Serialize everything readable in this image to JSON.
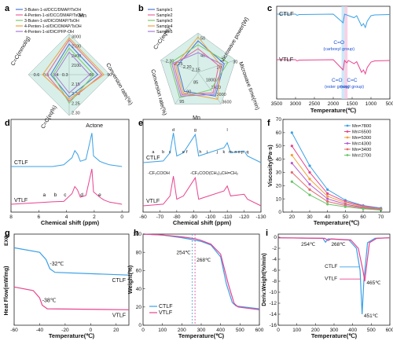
{
  "panel_letters": [
    "a",
    "b",
    "c",
    "d",
    "e",
    "f",
    "g",
    "h",
    "i"
  ],
  "colors": {
    "blue": "#3aa0e6",
    "pink": "#e8438f",
    "a_series": [
      "#4a74d8",
      "#e9639a",
      "#7bc96a",
      "#f0a13c",
      "#a67ad6"
    ],
    "b_series": [
      "#4a74d8",
      "#e9639a",
      "#7bc96a",
      "#f0a13c",
      "#a67ad6"
    ],
    "f_series": [
      "#3aa0e6",
      "#e8438f",
      "#f0a13c",
      "#b45fd0",
      "#e36b6b",
      "#6cc46a"
    ]
  },
  "chart_data": [
    {
      "id": "a",
      "type": "radar",
      "axes": [
        "Mn",
        "Conversion rate(%)",
        "C=C(eq%)",
        "C=C(mmol/g)"
      ],
      "axis_ticks": {
        "Mn": [
          "2100",
          "2400",
          "2700",
          "3000"
        ],
        "Conversion rate(%)": [
          "80",
          "90"
        ],
        "C=C(eq%)": [
          "2.15",
          "2.20",
          "2.25",
          "2.30"
        ],
        "C=C(mmol/g)": [
          "0.3",
          "0.4",
          "0.5",
          "0.6"
        ]
      },
      "series": [
        {
          "name": "3-Buten-1-ol/DCC/DMAP/TsOH",
          "values": [
            0.75,
            0.7,
            0.55,
            0.45
          ]
        },
        {
          "name": "4-Penten-1-ol/DCC/DMAP/TsOH",
          "values": [
            0.85,
            0.8,
            0.65,
            0.55
          ]
        },
        {
          "name": "3-Buten-1-ol/DIC/DMAP/TsOH",
          "values": [
            0.65,
            0.6,
            0.7,
            0.4
          ]
        },
        {
          "name": "4-Penten-1-ol/DIC/DMAP/TsOH",
          "values": [
            0.9,
            0.85,
            0.6,
            0.65
          ]
        },
        {
          "name": "4-Penten-1-ol/DIC/PFP-OH",
          "values": [
            0.55,
            0.5,
            0.45,
            0.35
          ]
        }
      ]
    },
    {
      "id": "b",
      "type": "radar",
      "axes": [
        "Microwave power(W)",
        "Microwave time(min)",
        "Mn",
        "Conversion rate(%)",
        "C=C(eq%)"
      ],
      "axis_ticks": {
        "Microwave power(W)": [
          "40",
          "50"
        ],
        "Microwave time(min)": [
          "20",
          "30"
        ],
        "Mn": [
          "1800",
          "2400",
          "3000",
          "3600"
        ],
        "Conversion rate(%)": [
          "85",
          "90",
          "95"
        ],
        "C=C(eq%)": [
          "2.15",
          "2.20",
          "2.25",
          "2.30"
        ]
      },
      "series": [
        {
          "name": "Sample1",
          "values": [
            0.8,
            0.7,
            0.75,
            0.6,
            0.55
          ]
        },
        {
          "name": "Sample2",
          "values": [
            0.6,
            0.55,
            0.65,
            0.7,
            0.65
          ]
        },
        {
          "name": "Sample3",
          "values": [
            0.7,
            0.8,
            0.55,
            0.8,
            0.75
          ]
        },
        {
          "name": "Sample4",
          "values": [
            0.9,
            0.6,
            0.85,
            0.65,
            0.6
          ]
        },
        {
          "name": "Sample5",
          "values": [
            0.5,
            0.65,
            0.7,
            0.75,
            0.7
          ]
        }
      ]
    },
    {
      "id": "c",
      "type": "line",
      "xlabel": "Temperature(℃)",
      "x_ticks": [
        "3500",
        "3000",
        "2500",
        "2000",
        "1500",
        "1000",
        "500"
      ],
      "xlim": [
        3500,
        500
      ],
      "series": [
        {
          "name": "CTLF",
          "points": [
            [
              3500,
              0.92
            ],
            [
              3000,
              0.92
            ],
            [
              2960,
              0.89
            ],
            [
              2900,
              0.91
            ],
            [
              2000,
              0.92
            ],
            [
              1740,
              0.7
            ],
            [
              1700,
              0.92
            ],
            [
              1450,
              0.83
            ],
            [
              1380,
              0.88
            ],
            [
              1250,
              0.62
            ],
            [
              1200,
              0.68
            ],
            [
              1150,
              0.58
            ],
            [
              1100,
              0.74
            ],
            [
              1000,
              0.88
            ],
            [
              900,
              0.9
            ],
            [
              500,
              0.91
            ]
          ]
        },
        {
          "name": "VTLF",
          "points": [
            [
              3500,
              0.92
            ],
            [
              3000,
              0.92
            ],
            [
              2960,
              0.89
            ],
            [
              2900,
              0.91
            ],
            [
              2000,
              0.92
            ],
            [
              1740,
              0.66
            ],
            [
              1700,
              0.9
            ],
            [
              1640,
              0.84
            ],
            [
              1600,
              0.9
            ],
            [
              1450,
              0.82
            ],
            [
              1380,
              0.87
            ],
            [
              1250,
              0.6
            ],
            [
              1200,
              0.66
            ],
            [
              1150,
              0.56
            ],
            [
              1100,
              0.72
            ],
            [
              1000,
              0.86
            ],
            [
              900,
              0.89
            ],
            [
              500,
              0.9
            ]
          ]
        }
      ],
      "annotations": [
        "C=O",
        "(carboxyl group)",
        "C=O",
        "(ester group)",
        "C=C",
        "(vinyl group)"
      ]
    },
    {
      "id": "d",
      "type": "line",
      "xlabel": "Chemical shift (ppm)",
      "x_ticks": [
        "8",
        "6",
        "4",
        "2",
        "0"
      ],
      "xlim": [
        8,
        -0.5
      ],
      "series": [
        {
          "name": "CTLF",
          "points": [
            [
              8,
              0
            ],
            [
              5,
              0
            ],
            [
              4.2,
              0.05
            ],
            [
              3.6,
              0.25
            ],
            [
              3.4,
              0.45
            ],
            [
              3.2,
              0.35
            ],
            [
              3.0,
              0.15
            ],
            [
              2.6,
              0.2
            ],
            [
              2.17,
              0.95
            ],
            [
              2.05,
              0.3
            ],
            [
              1.6,
              0.15
            ],
            [
              1.3,
              0.1
            ],
            [
              0.9,
              0.05
            ],
            [
              0,
              0
            ]
          ]
        },
        {
          "name": "VTLF",
          "points": [
            [
              8,
              0
            ],
            [
              5.8,
              0.05
            ],
            [
              5.0,
              0.07
            ],
            [
              4.2,
              0.08
            ],
            [
              3.6,
              0.3
            ],
            [
              3.4,
              0.5
            ],
            [
              3.2,
              0.4
            ],
            [
              3.0,
              0.2
            ],
            [
              2.6,
              0.25
            ],
            [
              2.17,
              1.0
            ],
            [
              2.05,
              0.35
            ],
            [
              1.6,
              0.2
            ],
            [
              1.3,
              0.12
            ],
            [
              0.9,
              0.06
            ],
            [
              0,
              0
            ]
          ]
        }
      ],
      "annotations": [
        "Actone",
        "a",
        "b",
        "c",
        "d",
        "e"
      ]
    },
    {
      "id": "e",
      "type": "line",
      "xlabel": "Chemical shift (ppm)",
      "x_ticks": [
        "-60",
        "-70",
        "-80",
        "-90",
        "-100",
        "-110",
        "-120",
        "-130"
      ],
      "xlim": [
        -60,
        -130
      ],
      "series": [
        {
          "name": "CTLF",
          "points": [
            [
              -60,
              0
            ],
            [
              -72,
              0.05
            ],
            [
              -76,
              0.3
            ],
            [
              -78,
              0.9
            ],
            [
              -80,
              0.2
            ],
            [
              -84,
              0.3
            ],
            [
              -91,
              0.85
            ],
            [
              -93,
              0.2
            ],
            [
              -108,
              0.45
            ],
            [
              -110,
              0.6
            ],
            [
              -112,
              0.3
            ],
            [
              -120,
              0.35
            ],
            [
              -122,
              0.2
            ],
            [
              -130,
              0
            ]
          ]
        },
        {
          "name": "VTLF",
          "points": [
            [
              -60,
              0
            ],
            [
              -72,
              0.05
            ],
            [
              -76,
              0.3
            ],
            [
              -78,
              0.9
            ],
            [
              -80,
              0.2
            ],
            [
              -84,
              0.3
            ],
            [
              -91,
              0.85
            ],
            [
              -93,
              0.2
            ],
            [
              -108,
              0.45
            ],
            [
              -110,
              0.6
            ],
            [
              -112,
              0.3
            ],
            [
              -120,
              0.35
            ],
            [
              -122,
              0.2
            ],
            [
              -130,
              0
            ]
          ]
        }
      ],
      "annotations": [
        "a",
        "b",
        "c",
        "d",
        "e",
        "f",
        "g",
        "h",
        "i",
        "j",
        "k",
        "l",
        "m",
        "n",
        "o",
        "p",
        "q",
        "-CF₂COOH",
        "-CF₂COO(CH₂)₃CH=CH₂"
      ]
    },
    {
      "id": "f",
      "type": "line",
      "xlabel": "Temperature(℃)",
      "ylabel": "Viscosity(Pa·s)",
      "x": [
        20,
        30,
        40,
        50,
        60,
        70
      ],
      "xlim": [
        15,
        75
      ],
      "ylim": [
        0,
        70
      ],
      "x_ticks": [
        "20",
        "30",
        "40",
        "50",
        "60",
        "70"
      ],
      "y_ticks": [
        "0",
        "10",
        "20",
        "30",
        "40",
        "50",
        "60",
        "70"
      ],
      "series": [
        {
          "name": "Mn=7800",
          "values": [
            60,
            35,
            17,
            9,
            5,
            3
          ]
        },
        {
          "name": "Mn=6500",
          "values": [
            50,
            30,
            14,
            8,
            4.5,
            2.5
          ]
        },
        {
          "name": "Mn=5300",
          "values": [
            43,
            25,
            12,
            7,
            4,
            2.2
          ]
        },
        {
          "name": "Mn=4300",
          "values": [
            37,
            21,
            10,
            6,
            3.5,
            2
          ]
        },
        {
          "name": "Mn=3400",
          "values": [
            30,
            17,
            8,
            5,
            3,
            1.8
          ]
        },
        {
          "name": "Mn=2700",
          "values": [
            23,
            13,
            6,
            4,
            2.5,
            1.5
          ]
        }
      ]
    },
    {
      "id": "g",
      "type": "line",
      "xlabel": "Temperature(℃)",
      "ylabel": "Heat Flow(mW/mg)",
      "ylabel_top": "EXO",
      "xlim": [
        -60,
        30
      ],
      "x_ticks": [
        "-60",
        "-40",
        "-20",
        "0",
        "20"
      ],
      "series": [
        {
          "name": "CTLF",
          "points": [
            [
              -60,
              0.85
            ],
            [
              -40,
              0.8
            ],
            [
              -35,
              0.72
            ],
            [
              -32,
              0.62
            ],
            [
              -28,
              0.58
            ],
            [
              30,
              0.55
            ]
          ]
        },
        {
          "name": "VTLF",
          "points": [
            [
              -60,
              0.42
            ],
            [
              -45,
              0.38
            ],
            [
              -40,
              0.3
            ],
            [
              -38,
              0.22
            ],
            [
              -34,
              0.18
            ],
            [
              30,
              0.17
            ]
          ]
        }
      ],
      "annotations": [
        "-32℃",
        "-38℃"
      ]
    },
    {
      "id": "h",
      "type": "line",
      "xlabel": "Temperature(℃)",
      "ylabel": "Weight(%)",
      "xlim": [
        0,
        600
      ],
      "ylim": [
        0,
        100
      ],
      "x_ticks": [
        "0",
        "100",
        "200",
        "300",
        "400",
        "500",
        "600"
      ],
      "y_ticks": [
        "0",
        "20",
        "40",
        "60",
        "80",
        "100"
      ],
      "series": [
        {
          "name": "CTLF",
          "points": [
            [
              0,
              100
            ],
            [
              100,
              99
            ],
            [
              200,
              96
            ],
            [
              254,
              94
            ],
            [
              300,
              92
            ],
            [
              350,
              88
            ],
            [
              400,
              75
            ],
            [
              430,
              45
            ],
            [
              460,
              25
            ],
            [
              480,
              21
            ],
            [
              600,
              18
            ]
          ]
        },
        {
          "name": "VTLF",
          "points": [
            [
              0,
              100
            ],
            [
              100,
              99
            ],
            [
              200,
              97
            ],
            [
              268,
              95
            ],
            [
              300,
              93
            ],
            [
              350,
              89
            ],
            [
              400,
              78
            ],
            [
              440,
              45
            ],
            [
              470,
              24
            ],
            [
              490,
              20
            ],
            [
              600,
              17
            ]
          ]
        }
      ],
      "annotations": [
        "254℃",
        "268℃"
      ]
    },
    {
      "id": "i",
      "type": "line",
      "xlabel": "Temperature(℃)",
      "ylabel": "Deriv.Weight(%/min)",
      "xlim": [
        0,
        600
      ],
      "ylim": [
        -16,
        0
      ],
      "x_ticks": [
        "0",
        "100",
        "200",
        "300",
        "400",
        "500",
        "600"
      ],
      "y_ticks": [
        "0",
        "-2",
        "-4",
        "-6",
        "-8",
        "-10",
        "-12",
        "-14",
        "-16"
      ],
      "series": [
        {
          "name": "CTLF",
          "points": [
            [
              0,
              -0.1
            ],
            [
              240,
              -0.2
            ],
            [
              254,
              -0.9
            ],
            [
              268,
              -0.3
            ],
            [
              380,
              -0.5
            ],
            [
              420,
              -2
            ],
            [
              440,
              -6
            ],
            [
              451,
              -14
            ],
            [
              460,
              -8
            ],
            [
              480,
              -1
            ],
            [
              520,
              -0.2
            ],
            [
              600,
              -0.1
            ]
          ]
        },
        {
          "name": "VTLF",
          "points": [
            [
              0,
              -0.1
            ],
            [
              250,
              -0.2
            ],
            [
              268,
              -0.6
            ],
            [
              285,
              -0.3
            ],
            [
              390,
              -0.5
            ],
            [
              430,
              -2
            ],
            [
              455,
              -6
            ],
            [
              465,
              -8
            ],
            [
              472,
              -6
            ],
            [
              490,
              -1
            ],
            [
              530,
              -0.2
            ],
            [
              600,
              -0.1
            ]
          ]
        }
      ],
      "annotations": [
        "254℃",
        "268℃",
        "465℃",
        "451℃"
      ]
    }
  ]
}
